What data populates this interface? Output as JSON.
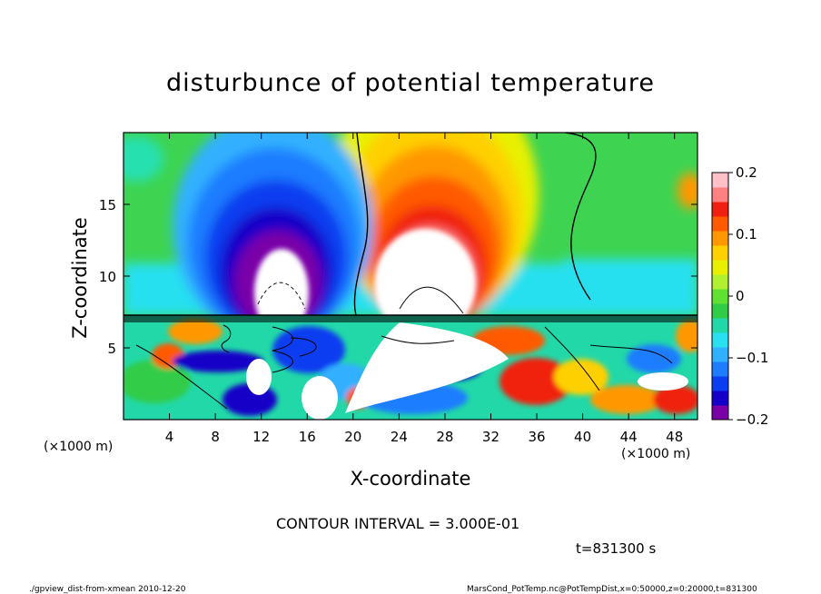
{
  "chart_data": {
    "type": "heatmap",
    "title": "disturbunce of potential temperature",
    "xlabel": "X-coordinate",
    "ylabel": "Z-coordinate",
    "x_unit_label": "(×1000 m)",
    "x_ticks": [
      4,
      8,
      12,
      16,
      20,
      24,
      28,
      32,
      36,
      40,
      44,
      48
    ],
    "y_ticks": [
      5,
      10,
      15
    ],
    "xlim": [
      0,
      50
    ],
    "ylim": [
      0,
      20
    ],
    "colorbar": {
      "ticks": [
        "0.2",
        "0.1",
        "0",
        "−0.1",
        "−0.2"
      ],
      "tick_values": [
        0.2,
        0.1,
        0,
        -0.1,
        -0.2
      ],
      "range": [
        -0.2,
        0.2
      ],
      "colors": [
        "#7a00a8",
        "#1400c8",
        "#0a3ef0",
        "#1e7dff",
        "#30b0ff",
        "#28e0f0",
        "#22d8a8",
        "#30cc48",
        "#60e030",
        "#b0f030",
        "#e8f000",
        "#ffd000",
        "#ff9800",
        "#ff5a00",
        "#f02010",
        "#ff8080",
        "#ffc0c8"
      ]
    },
    "contour_interval": "CONTOUR INTERVAL = 3.000E-01",
    "time_label": "t=831300 s"
  },
  "footer": {
    "left": "./gpview_dist-from-xmean  2010-12-20",
    "right": "MarsCond_PotTemp.nc@PotTempDist,x=0:50000,z=0:20000,t=831300"
  }
}
